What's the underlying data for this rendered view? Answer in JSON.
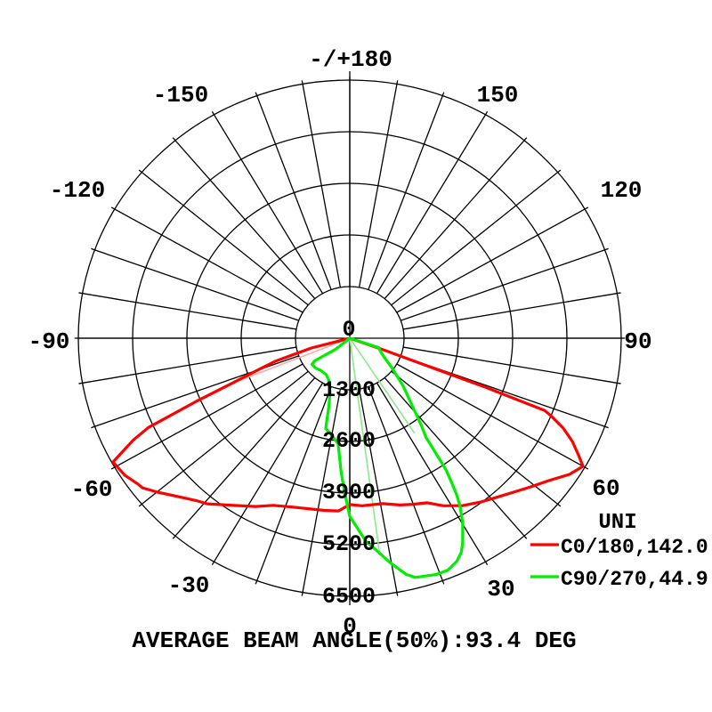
{
  "chart_data": {
    "type": "line-polar",
    "title": "AVERAGE BEAM ANGLE(50%):93.4 DEG",
    "angle_labels": [
      "-/+180",
      "-150",
      "-120",
      "-90",
      "-60",
      "-30",
      "0",
      "30",
      "60",
      "90",
      "120",
      "150"
    ],
    "radial_labels": [
      "0",
      "1300",
      "2600",
      "3900",
      "5200",
      "6500"
    ],
    "radial_max": 6500,
    "radial_step": 1300,
    "grid": {
      "spoke_step_deg": 10,
      "ring_count": 5,
      "angle_label_step_deg": 30
    },
    "legend": {
      "header": "UNI",
      "entries": [
        {
          "label": "C0/180,142.0",
          "color": "#ff0000"
        },
        {
          "label": "C90/270,44.9",
          "color": "#00ee00"
        }
      ]
    },
    "series": [
      {
        "name": "C0/180",
        "beam_angle_deg": 142.0,
        "color": "#ff0000",
        "points": [
          [
            -76,
            0
          ],
          [
            -75,
            950
          ],
          [
            -72,
            1860
          ],
          [
            -70,
            2340
          ],
          [
            -68,
            3060
          ],
          [
            -66.6,
            4010
          ],
          [
            -65,
            5320
          ],
          [
            -63.7,
            5780
          ],
          [
            -61.2,
            6470
          ],
          [
            -57.4,
            6400
          ],
          [
            -54,
            6260
          ],
          [
            -52.8,
            6230
          ],
          [
            -49.9,
            6020
          ],
          [
            -45.9,
            5730
          ],
          [
            -42,
            5500
          ],
          [
            -39.3,
            5390
          ],
          [
            -33.3,
            5040
          ],
          [
            -28,
            4800
          ],
          [
            -23.5,
            4590
          ],
          [
            -18,
            4470
          ],
          [
            -12,
            4400
          ],
          [
            -8,
            4380
          ],
          [
            -3.6,
            4360
          ],
          [
            0,
            4190
          ],
          [
            4,
            4230
          ],
          [
            10.7,
            4240
          ],
          [
            16,
            4370
          ],
          [
            20,
            4450
          ],
          [
            24.1,
            4540
          ],
          [
            28,
            4780
          ],
          [
            32.7,
            5010
          ],
          [
            37.2,
            5180
          ],
          [
            41.7,
            5350
          ],
          [
            46.6,
            5580
          ],
          [
            49.9,
            5770
          ],
          [
            53.1,
            5970
          ],
          [
            56.9,
            6280
          ],
          [
            60,
            6450
          ],
          [
            61.8,
            6210
          ],
          [
            64,
            5930
          ],
          [
            66.1,
            5590
          ],
          [
            67.8,
            5230
          ],
          [
            68.7,
            5010
          ],
          [
            69.2,
            3500
          ],
          [
            69.4,
            1980
          ],
          [
            70,
            900
          ],
          [
            70.5,
            0
          ]
        ]
      },
      {
        "name": "C90/270",
        "beam_angle_deg": 44.9,
        "color": "#00ee00",
        "points": [
          [
            -48,
            0
          ],
          [
            -50.6,
            450
          ],
          [
            -54.7,
            780
          ],
          [
            -55.8,
            1020
          ],
          [
            -53.9,
            1120
          ],
          [
            -47,
            1110
          ],
          [
            -41,
            1070
          ],
          [
            -31.4,
            1080
          ],
          [
            -24.4,
            1190
          ],
          [
            -18.9,
            1460
          ],
          [
            -16,
            1830
          ],
          [
            -14.9,
            2130
          ],
          [
            -14.2,
            2350
          ],
          [
            -10,
            2480
          ],
          [
            -6,
            2670
          ],
          [
            -3.5,
            3380
          ],
          [
            -2,
            3825
          ],
          [
            0,
            4490
          ],
          [
            4.4,
            5140
          ],
          [
            6.9,
            5390
          ],
          [
            9.7,
            5735
          ],
          [
            12.8,
            6100
          ],
          [
            14.6,
            6225
          ],
          [
            19.1,
            6300
          ],
          [
            21.9,
            6295
          ],
          [
            24.5,
            6175
          ],
          [
            26.3,
            6020
          ],
          [
            27.6,
            5835
          ],
          [
            30.2,
            5375
          ],
          [
            32,
            4980
          ],
          [
            33,
            4700
          ],
          [
            34,
            4330
          ],
          [
            34.8,
            4040
          ],
          [
            36.2,
            3080
          ],
          [
            38,
            2780
          ],
          [
            41.3,
            2270
          ],
          [
            46.6,
            1770
          ],
          [
            53.8,
            1240
          ],
          [
            60,
            950
          ],
          [
            66,
            800
          ],
          [
            71,
            740
          ],
          [
            74,
            0
          ]
        ]
      }
    ],
    "rays": [
      {
        "color": "#ffaaaa",
        "angle": -68,
        "value": 3300
      },
      {
        "color": "#8ce88c",
        "angle": 7.5,
        "value": 5450
      },
      {
        "color": "#8ce88c",
        "angle": 33,
        "value": 2850
      }
    ]
  }
}
